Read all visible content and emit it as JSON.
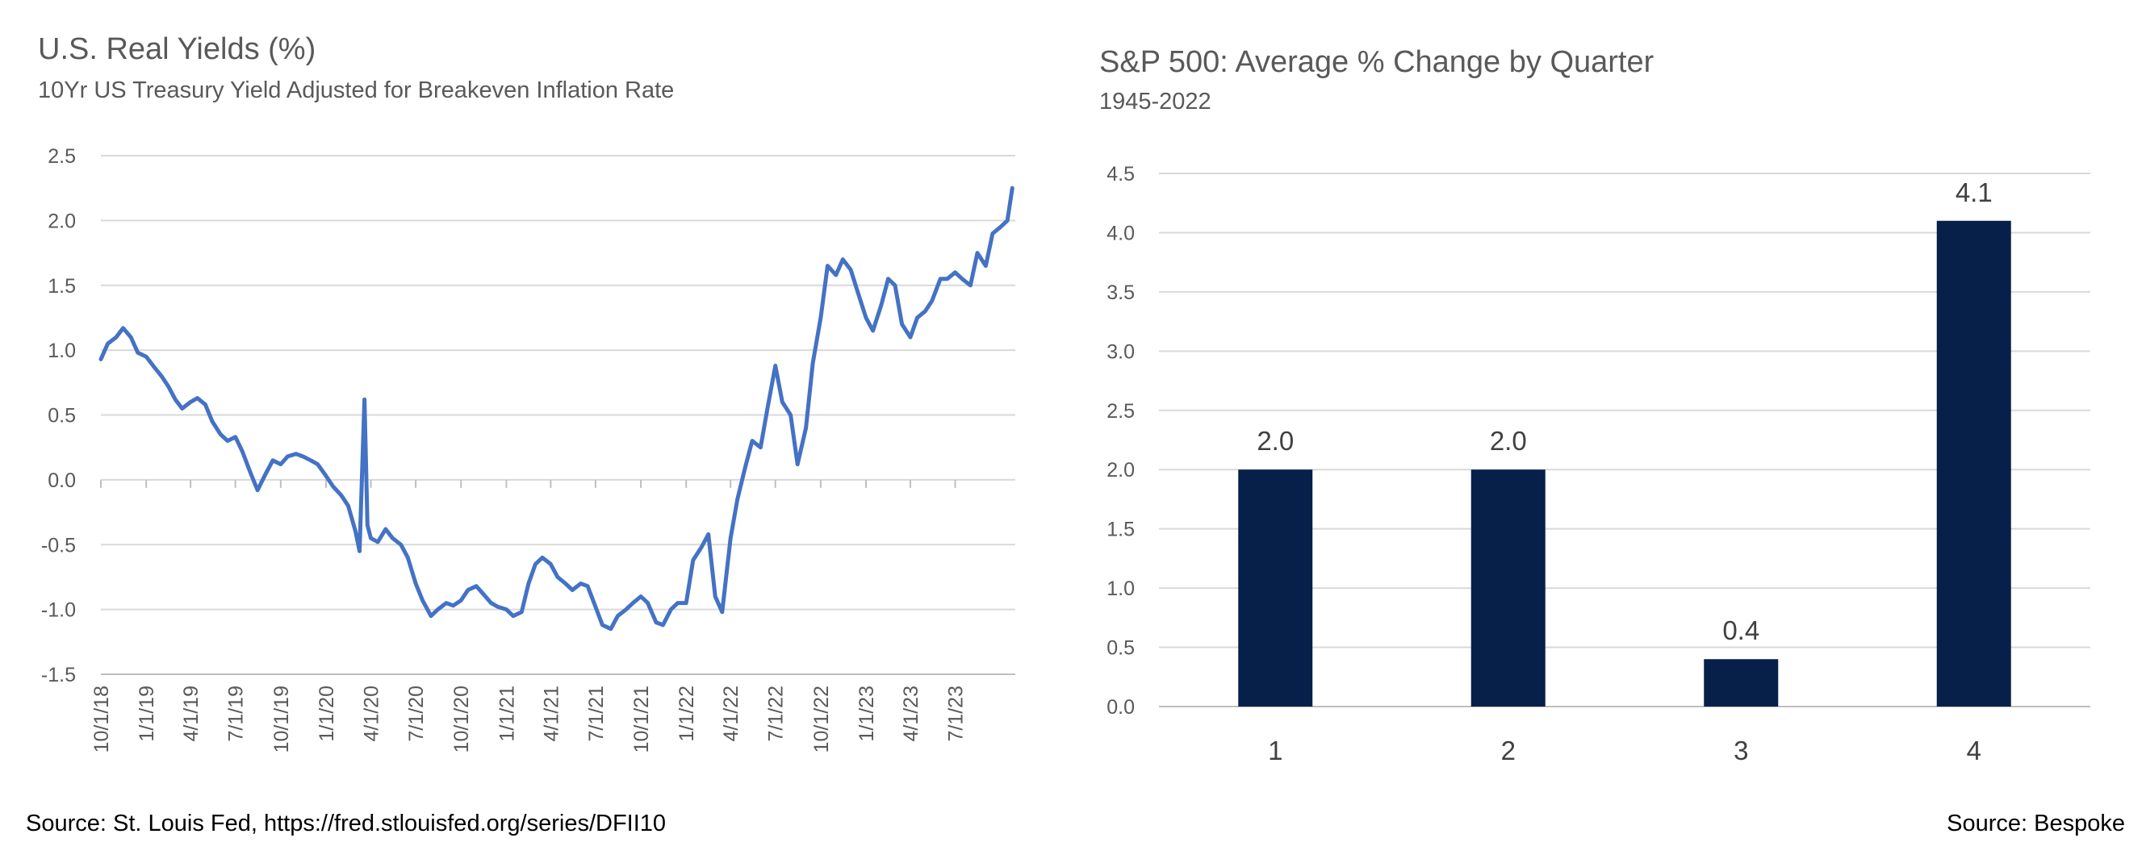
{
  "left_chart": {
    "title": "U.S. Real Yields (%)",
    "subtitle": "10Yr US Treasury Yield Adjusted for Breakeven Inflation Rate",
    "source": "Source:  St. Louis Fed, https://fred.stlouisfed.org/series/DFII10",
    "line_color": "#4472C4"
  },
  "right_chart": {
    "title": "S&P 500: Average % Change by Quarter",
    "subtitle": "1945-2022",
    "source": "Source: Bespoke",
    "bar_color": "#06204A"
  },
  "chart_data": [
    {
      "type": "line",
      "title": "U.S. Real Yields (%)",
      "subtitle": "10Yr US Treasury Yield Adjusted for Breakeven Inflation Rate",
      "xlabel": "",
      "ylabel": "",
      "ylim": [
        -1.5,
        2.5
      ],
      "yticks": [
        -1.5,
        -1.0,
        -0.5,
        0.0,
        0.5,
        1.0,
        1.5,
        2.0,
        2.5
      ],
      "ytick_labels": [
        "-1.5",
        "-1.0",
        "-0.5",
        "0.0",
        "0.5",
        "1.0",
        "1.5",
        "2.0",
        "2.5"
      ],
      "xlim": [
        "2018-10-01",
        "2023-10-31"
      ],
      "xtick_labels": [
        "10/1/18",
        "1/1/19",
        "4/1/19",
        "7/1/19",
        "10/1/19",
        "1/1/20",
        "4/1/20",
        "7/1/20",
        "10/1/20",
        "1/1/21",
        "4/1/21",
        "7/1/21",
        "10/1/21",
        "1/1/22",
        "4/1/22",
        "7/1/22",
        "10/1/22",
        "1/1/23",
        "4/1/23",
        "7/1/23"
      ],
      "xtick_dates": [
        "2018-10-01",
        "2019-01-01",
        "2019-04-01",
        "2019-07-01",
        "2019-10-01",
        "2020-01-01",
        "2020-04-01",
        "2020-07-01",
        "2020-10-01",
        "2021-01-01",
        "2021-04-01",
        "2021-07-01",
        "2021-10-01",
        "2022-01-01",
        "2022-04-01",
        "2022-07-01",
        "2022-10-01",
        "2023-01-01",
        "2023-04-01",
        "2023-07-01"
      ],
      "grid": true,
      "series": [
        {
          "x": [
            "2018-10-01",
            "2018-10-15",
            "2018-11-01",
            "2018-11-15",
            "2018-12-01",
            "2018-12-15",
            "2019-01-01",
            "2019-01-15",
            "2019-02-01",
            "2019-02-15",
            "2019-03-01",
            "2019-03-15",
            "2019-04-01",
            "2019-04-15",
            "2019-05-01",
            "2019-05-15",
            "2019-06-01",
            "2019-06-15",
            "2019-07-01",
            "2019-07-15",
            "2019-08-01",
            "2019-08-15",
            "2019-09-01",
            "2019-09-15",
            "2019-10-01",
            "2019-10-15",
            "2019-11-01",
            "2019-11-15",
            "2019-12-01",
            "2019-12-15",
            "2020-01-01",
            "2020-01-15",
            "2020-02-01",
            "2020-02-15",
            "2020-03-01",
            "2020-03-09",
            "2020-03-19",
            "2020-03-25",
            "2020-04-01",
            "2020-04-15",
            "2020-05-01",
            "2020-05-15",
            "2020-06-01",
            "2020-06-15",
            "2020-07-01",
            "2020-07-15",
            "2020-08-01",
            "2020-08-15",
            "2020-09-01",
            "2020-09-15",
            "2020-10-01",
            "2020-10-15",
            "2020-11-01",
            "2020-11-15",
            "2020-12-01",
            "2020-12-15",
            "2021-01-01",
            "2021-01-15",
            "2021-02-01",
            "2021-02-15",
            "2021-03-01",
            "2021-03-15",
            "2021-04-01",
            "2021-04-15",
            "2021-05-01",
            "2021-05-15",
            "2021-06-01",
            "2021-06-15",
            "2021-07-01",
            "2021-07-15",
            "2021-08-01",
            "2021-08-15",
            "2021-09-01",
            "2021-09-15",
            "2021-10-01",
            "2021-10-15",
            "2021-11-01",
            "2021-11-15",
            "2021-12-01",
            "2021-12-15",
            "2022-01-01",
            "2022-01-15",
            "2022-02-01",
            "2022-02-15",
            "2022-03-01",
            "2022-03-15",
            "2022-04-01",
            "2022-04-15",
            "2022-05-01",
            "2022-05-15",
            "2022-06-01",
            "2022-06-15",
            "2022-07-01",
            "2022-07-15",
            "2022-08-01",
            "2022-08-15",
            "2022-09-01",
            "2022-09-15",
            "2022-10-01",
            "2022-10-15",
            "2022-11-01",
            "2022-11-15",
            "2022-12-01",
            "2022-12-15",
            "2023-01-01",
            "2023-01-15",
            "2023-02-01",
            "2023-02-15",
            "2023-03-01",
            "2023-03-15",
            "2023-04-01",
            "2023-04-15",
            "2023-05-01",
            "2023-05-15",
            "2023-06-01",
            "2023-06-15",
            "2023-07-01",
            "2023-07-15",
            "2023-08-01",
            "2023-08-15",
            "2023-09-01",
            "2023-09-15",
            "2023-10-01",
            "2023-10-15",
            "2023-10-25"
          ],
          "values": [
            0.93,
            1.05,
            1.1,
            1.17,
            1.1,
            0.98,
            0.95,
            0.88,
            0.8,
            0.72,
            0.62,
            0.55,
            0.6,
            0.63,
            0.58,
            0.45,
            0.35,
            0.3,
            0.33,
            0.22,
            0.05,
            -0.08,
            0.05,
            0.15,
            0.12,
            0.18,
            0.2,
            0.18,
            0.15,
            0.12,
            0.03,
            -0.05,
            -0.12,
            -0.2,
            -0.4,
            -0.55,
            0.62,
            -0.35,
            -0.45,
            -0.48,
            -0.38,
            -0.45,
            -0.5,
            -0.6,
            -0.8,
            -0.93,
            -1.05,
            -1.0,
            -0.95,
            -0.97,
            -0.93,
            -0.85,
            -0.82,
            -0.88,
            -0.95,
            -0.98,
            -1.0,
            -1.05,
            -1.02,
            -0.8,
            -0.65,
            -0.6,
            -0.65,
            -0.75,
            -0.8,
            -0.85,
            -0.8,
            -0.82,
            -0.98,
            -1.12,
            -1.15,
            -1.05,
            -1.0,
            -0.95,
            -0.9,
            -0.95,
            -1.1,
            -1.12,
            -1.0,
            -0.95,
            -0.95,
            -0.62,
            -0.52,
            -0.42,
            -0.9,
            -1.02,
            -0.45,
            -0.15,
            0.1,
            0.3,
            0.25,
            0.55,
            0.88,
            0.6,
            0.5,
            0.12,
            0.4,
            0.9,
            1.25,
            1.65,
            1.58,
            1.7,
            1.62,
            1.45,
            1.25,
            1.15,
            1.35,
            1.55,
            1.5,
            1.2,
            1.1,
            1.25,
            1.3,
            1.38,
            1.55,
            1.55,
            1.6,
            1.55,
            1.5,
            1.75,
            1.65,
            1.9,
            1.95,
            2.0,
            2.25
          ]
        }
      ]
    },
    {
      "type": "bar",
      "title": "S&P 500: Average % Change by Quarter",
      "subtitle": "1945-2022",
      "xlabel": "",
      "ylabel": "",
      "categories": [
        "1",
        "2",
        "3",
        "4"
      ],
      "values": [
        2.0,
        2.0,
        0.4,
        4.1
      ],
      "data_labels": [
        "2.0",
        "2.0",
        "0.4",
        "4.1"
      ],
      "ylim": [
        0.0,
        4.5
      ],
      "yticks": [
        0.0,
        0.5,
        1.0,
        1.5,
        2.0,
        2.5,
        3.0,
        3.5,
        4.0,
        4.5
      ],
      "ytick_labels": [
        "0.0",
        "0.5",
        "1.0",
        "1.5",
        "2.0",
        "2.5",
        "3.0",
        "3.5",
        "4.0",
        "4.5"
      ],
      "grid": true
    }
  ]
}
